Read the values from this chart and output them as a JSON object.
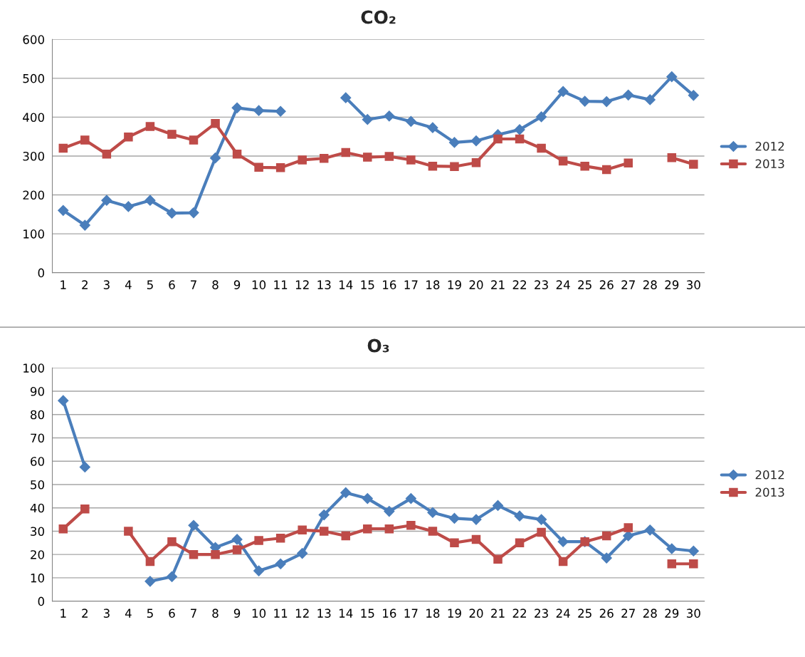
{
  "chart_data": [
    {
      "type": "line",
      "title": "CO₂",
      "categories": [
        "1",
        "2",
        "3",
        "4",
        "5",
        "6",
        "7",
        "8",
        "9",
        "10",
        "11",
        "12",
        "13",
        "14",
        "15",
        "16",
        "17",
        "18",
        "19",
        "20",
        "21",
        "22",
        "23",
        "24",
        "25",
        "26",
        "27",
        "28",
        "29",
        "30"
      ],
      "series": [
        {
          "name": "2012",
          "color": "#4a7ebb",
          "marker": "diamond",
          "values": [
            160,
            122,
            186,
            170,
            186,
            153,
            154,
            295,
            424,
            417,
            415,
            null,
            null,
            450,
            394,
            403,
            389,
            373,
            335,
            339,
            355,
            368,
            401,
            466,
            441,
            440,
            457,
            445,
            504,
            456
          ]
        },
        {
          "name": "2013",
          "color": "#be4b48",
          "marker": "square",
          "values": [
            320,
            341,
            305,
            349,
            376,
            356,
            341,
            384,
            305,
            271,
            270,
            290,
            294,
            309,
            297,
            299,
            290,
            274,
            273,
            283,
            344,
            344,
            320,
            287,
            274,
            265,
            282,
            null,
            296,
            279
          ]
        }
      ],
      "ylim": [
        0,
        600
      ],
      "yticks": [
        0,
        100,
        200,
        300,
        400,
        500,
        600
      ],
      "grid": "y",
      "legend": "right",
      "line_style": "solid"
    },
    {
      "type": "line",
      "title": "O₃",
      "categories": [
        "1",
        "2",
        "3",
        "4",
        "5",
        "6",
        "7",
        "8",
        "9",
        "10",
        "11",
        "12",
        "13",
        "14",
        "15",
        "16",
        "17",
        "18",
        "19",
        "20",
        "21",
        "22",
        "23",
        "24",
        "25",
        "26",
        "27",
        "28",
        "29",
        "30"
      ],
      "series": [
        {
          "name": "2012",
          "color": "#4a7ebb",
          "marker": "diamond",
          "values": [
            86,
            57.5,
            null,
            null,
            8.5,
            10.5,
            32.5,
            23,
            26.5,
            13,
            16,
            20.5,
            37,
            46.5,
            44,
            38.5,
            44,
            38,
            35.5,
            35,
            41,
            36.5,
            35,
            25.5,
            25.5,
            18.5,
            28,
            30.5,
            22.5,
            21.5
          ]
        },
        {
          "name": "2013",
          "color": "#be4b48",
          "marker": "square",
          "values": [
            31,
            39.5,
            null,
            30,
            17,
            25.5,
            20,
            20,
            22,
            26,
            27,
            30.5,
            30,
            28,
            31,
            31,
            32.5,
            30,
            25,
            26.5,
            18,
            25,
            29.5,
            17,
            25.5,
            28,
            31.5,
            null,
            16,
            16
          ]
        }
      ],
      "ylim": [
        0,
        100
      ],
      "yticks": [
        0,
        10,
        20,
        30,
        40,
        50,
        60,
        70,
        80,
        90,
        100
      ],
      "grid": "y",
      "legend": "right",
      "line_style": "solid"
    }
  ]
}
